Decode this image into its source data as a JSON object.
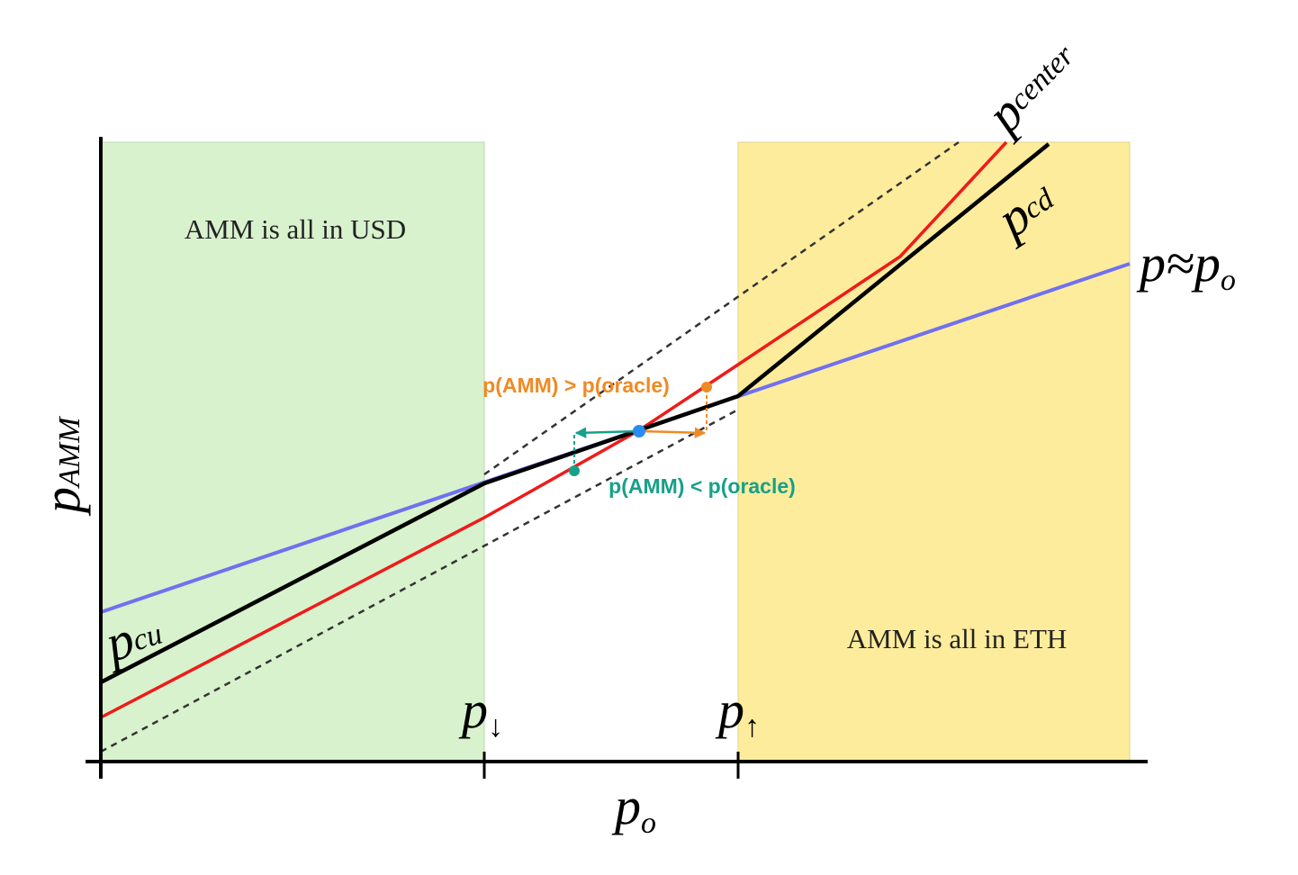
{
  "regions": [
    {
      "label": "AMM is all in USD"
    },
    {
      "label": "AMM is all in ETH"
    }
  ],
  "annotations": [
    "p(AMM) > p(oracle)",
    "p(AMM) < p(oracle)"
  ],
  "axes": {
    "y": {
      "symbol": "p",
      "subscript": "AMM"
    },
    "x": {
      "symbol": "p",
      "subscript": "o"
    }
  },
  "markers": [
    {
      "symbol": "p",
      "subscript": "↓"
    },
    {
      "symbol": "p",
      "subscript": "↑"
    }
  ],
  "curves": [
    {
      "symbol": "p",
      "subscript": "center"
    },
    {
      "symbol": "p",
      "subscript": "cd"
    },
    {
      "symbol": "p",
      "subscript": "cu"
    },
    {
      "symbol": "p≈p",
      "subscript": "o"
    }
  ]
}
